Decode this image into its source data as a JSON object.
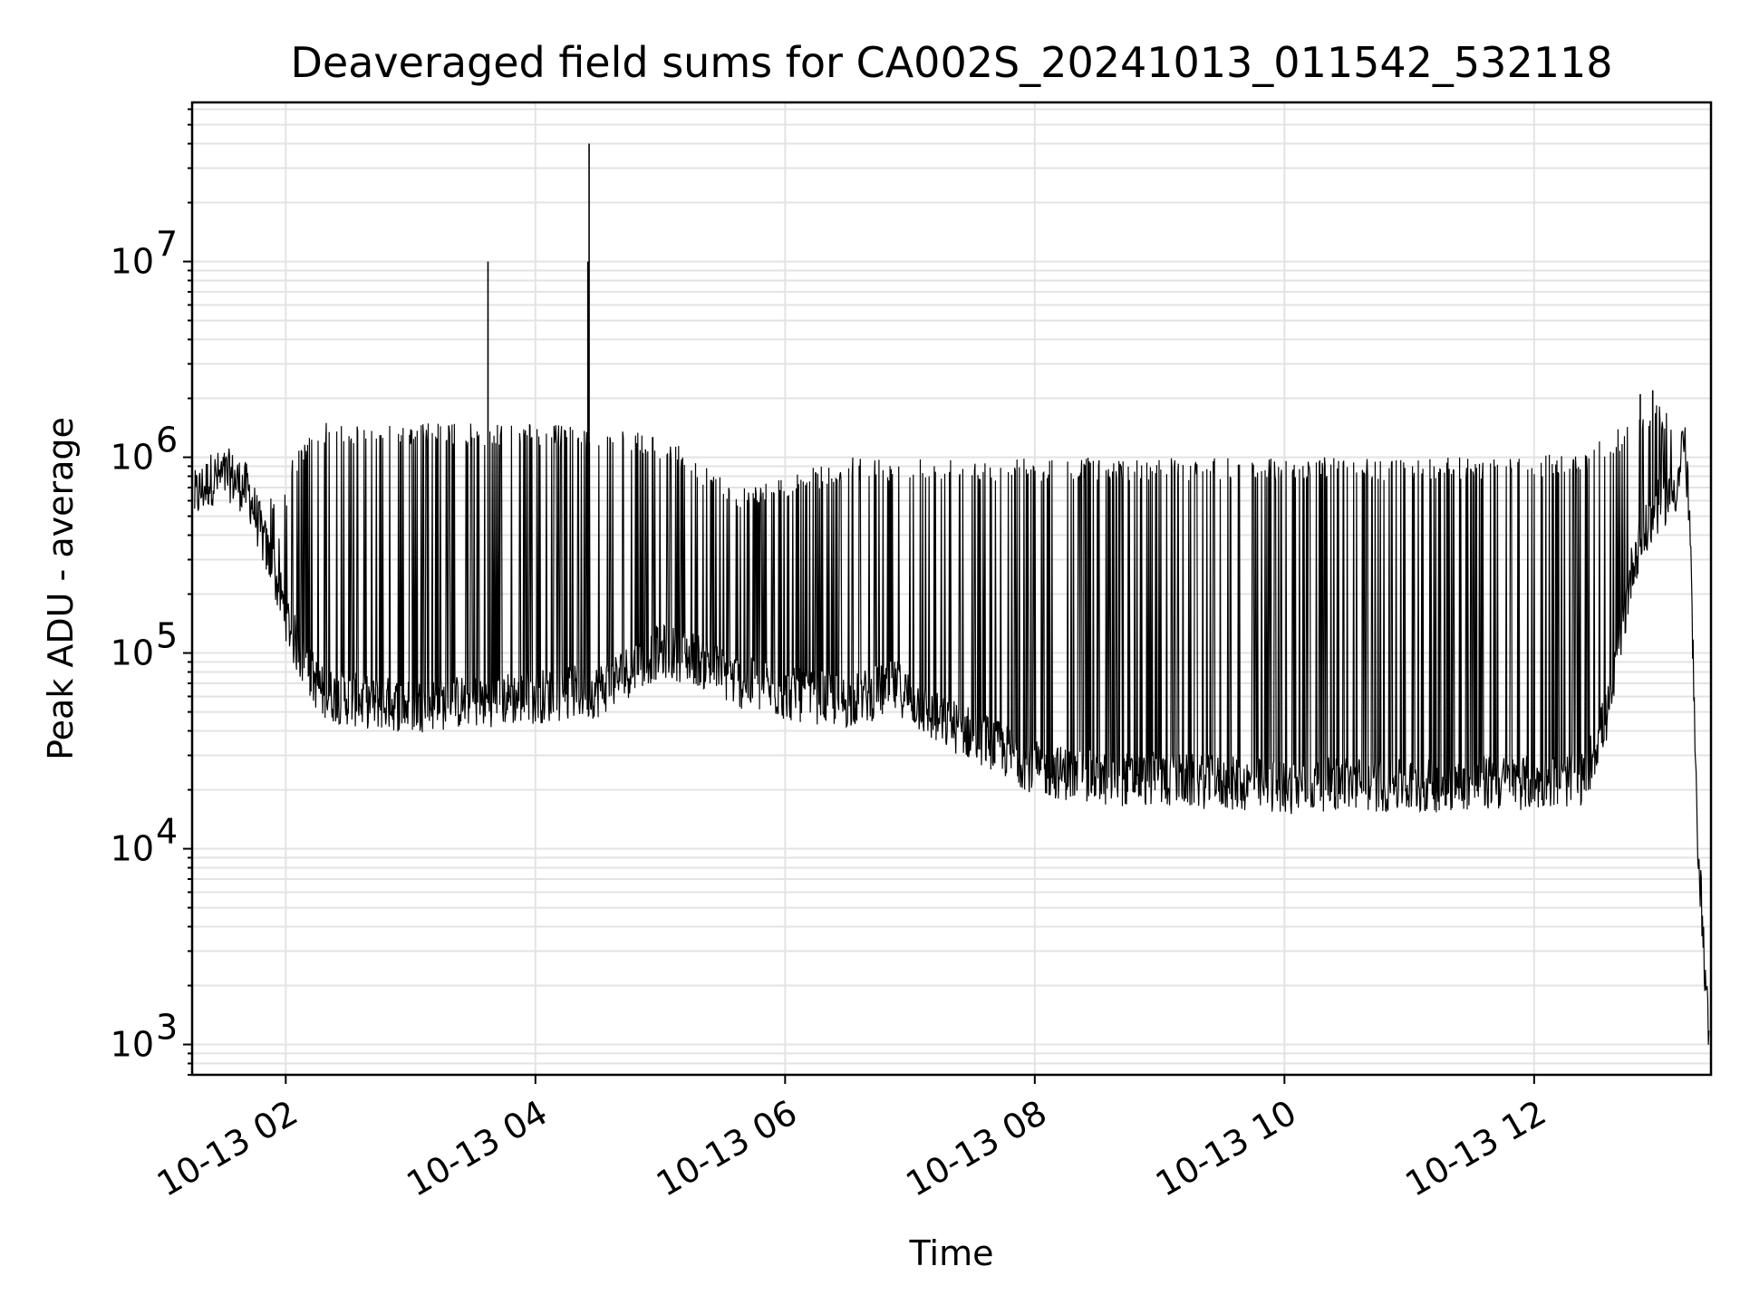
{
  "chart_data": {
    "type": "line",
    "title": "Deaveraged field sums for CA002S_20241013_011542_532118",
    "xlabel": "Time",
    "ylabel": "Peak ADU - average",
    "yscale": "log",
    "grid": true,
    "line_color": "#000000",
    "xlim": [
      "2024-10-13 01:15",
      "2024-10-13 13:25"
    ],
    "ylim": [
      700,
      65000000
    ],
    "x_ticks": [
      "10-13 02",
      "10-13 04",
      "10-13 06",
      "10-13 08",
      "10-13 10",
      "10-13 12"
    ],
    "y_tick_values": [
      1000,
      10000,
      100000,
      1000000,
      10000000
    ],
    "series": [
      {
        "x_hours": [
          1.27,
          1.4,
          1.55,
          1.7,
          1.85,
          1.95,
          2.05,
          2.15,
          2.3,
          2.6,
          3.0,
          3.5,
          4.0,
          4.5,
          5.0,
          5.3,
          5.6,
          6.0,
          6.5,
          6.9,
          7.2,
          7.6,
          8.0,
          8.5,
          9.0,
          9.5,
          10.0,
          10.5,
          11.0,
          11.5,
          12.0,
          12.4,
          12.6,
          12.8,
          13.0,
          13.15,
          13.2,
          13.25,
          13.3,
          13.4
        ],
        "baseline": [
          600000,
          750000,
          780000,
          650000,
          320000,
          200000,
          120000,
          85000,
          60000,
          55000,
          52000,
          55000,
          58000,
          62000,
          100000,
          90000,
          70000,
          60000,
          55000,
          65000,
          45000,
          35000,
          25000,
          22000,
          22000,
          21000,
          20000,
          21000,
          20000,
          21000,
          21000,
          22000,
          50000,
          300000,
          550000,
          700000,
          1300000,
          400000,
          15000,
          1000
        ],
        "upper": [
          800000,
          900000,
          950000,
          1000000,
          700000,
          500000,
          1000000,
          1200000,
          1500000,
          1500000,
          1500000,
          1500000,
          1500000,
          1400000,
          1300000,
          1000000,
          700000,
          800000,
          1000000,
          1000000,
          1000000,
          1000000,
          1000000,
          1000000,
          1000000,
          1000000,
          1000000,
          1000000,
          1000000,
          1000000,
          1000000,
          1100000,
          1300000,
          1600000,
          1900000,
          1500000,
          1300000,
          400000,
          15000,
          1000
        ],
        "spikes": [
          [
            3.62,
            10000000
          ],
          [
            4.43,
            40000000
          ],
          [
            4.42,
            10000000
          ],
          [
            12.95,
            2200000
          ],
          [
            12.85,
            2100000
          ]
        ]
      }
    ]
  }
}
